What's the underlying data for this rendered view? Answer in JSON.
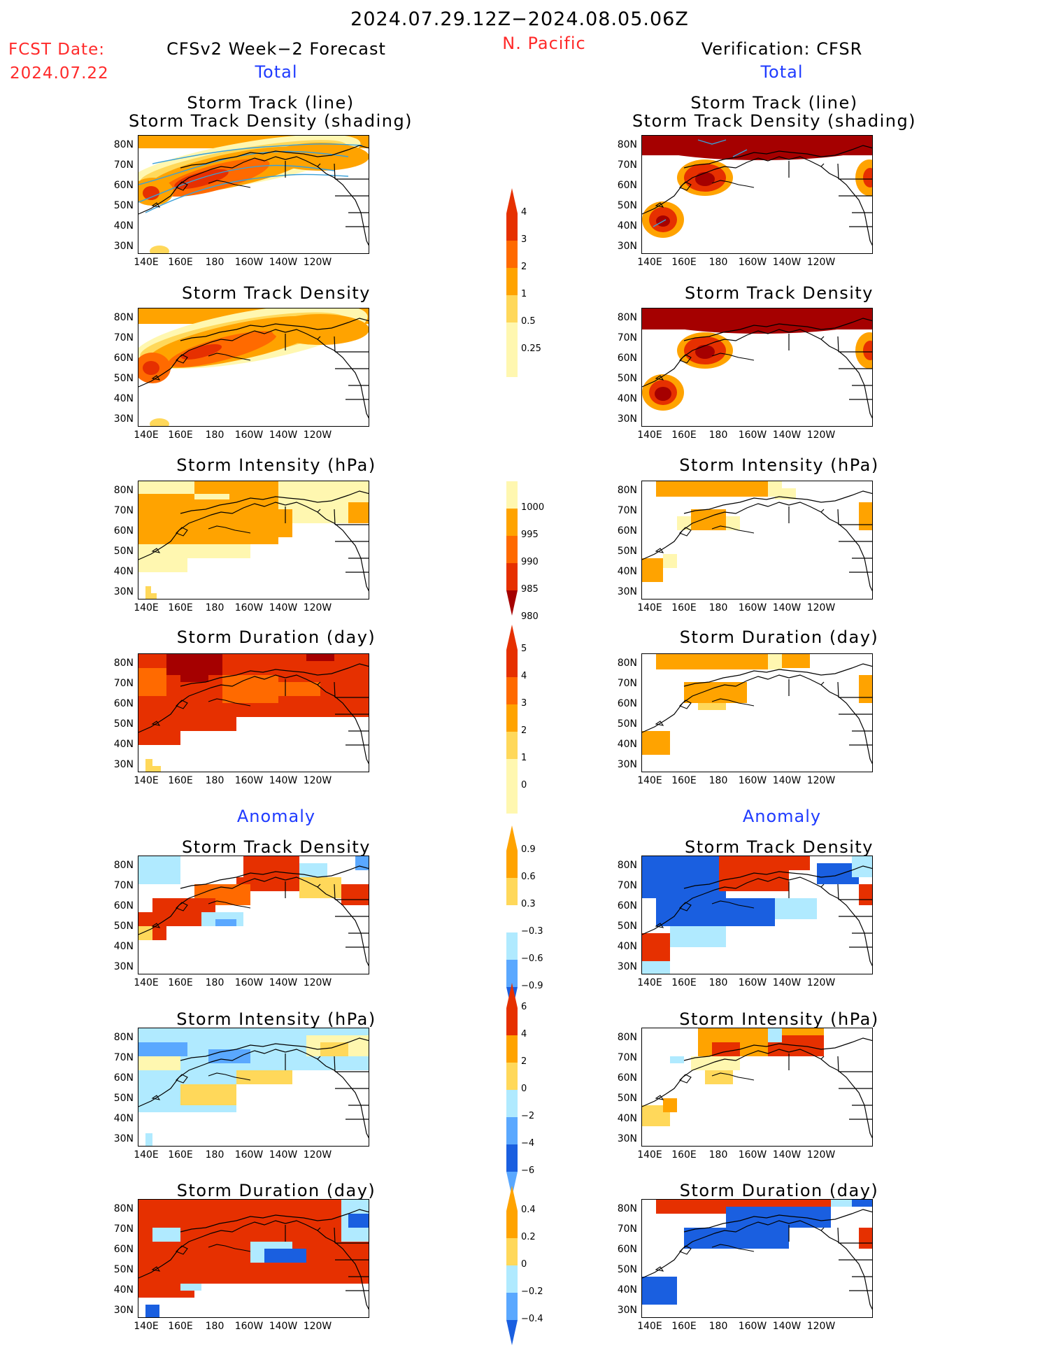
{
  "header": {
    "period": "2024.07.29.12Z−2024.08.05.06Z",
    "region": "N. Pacific",
    "fcst_label": "FCST Date:",
    "fcst_date": "2024.07.22",
    "left_title": "CFSv2 Week−2 Forecast",
    "right_title": "Verification: CFSR",
    "total": "Total",
    "anomaly": "Anomaly"
  },
  "panel_titles": {
    "track_line": "Storm Track (line)",
    "track_shading": "Storm Track Density (shading)",
    "density": "Storm Track Density",
    "intensity": "Storm Intensity (hPa)",
    "duration": "Storm Duration (day)"
  },
  "axes": {
    "lat_labels": [
      "80N",
      "70N",
      "60N",
      "50N",
      "40N",
      "30N"
    ],
    "lon_labels": [
      "140E",
      "160E",
      "180",
      "160W",
      "140W",
      "120W"
    ]
  },
  "colorbars": {
    "density_total": [
      "4",
      "3",
      "2",
      "1",
      "0.5",
      "0.25"
    ],
    "intensity_total": [
      "1000",
      "995",
      "990",
      "985",
      "980"
    ],
    "duration_total": [
      "5",
      "4",
      "3",
      "2",
      "1",
      "0"
    ],
    "density_anom": [
      "0.9",
      "0.6",
      "0.3",
      "−0.3",
      "−0.6",
      "−0.9"
    ],
    "intensity_anom": [
      "6",
      "4",
      "2",
      "0",
      "−2",
      "−4",
      "−6"
    ],
    "duration_anom": [
      "0.4",
      "0.2",
      "0",
      "−0.2",
      "−0.4"
    ]
  },
  "colors": {
    "pale_yellow": "#fff7b0",
    "yellow": "#ffd85a",
    "orange": "#ffa300",
    "dark_orange": "#ff6a00",
    "red": "#e63000",
    "dark_red": "#a50000",
    "light_blue": "#b0eaff",
    "blue": "#5aa8ff",
    "dark_blue": "#1a5fe0",
    "track_line": "#3aa0d8"
  }
}
